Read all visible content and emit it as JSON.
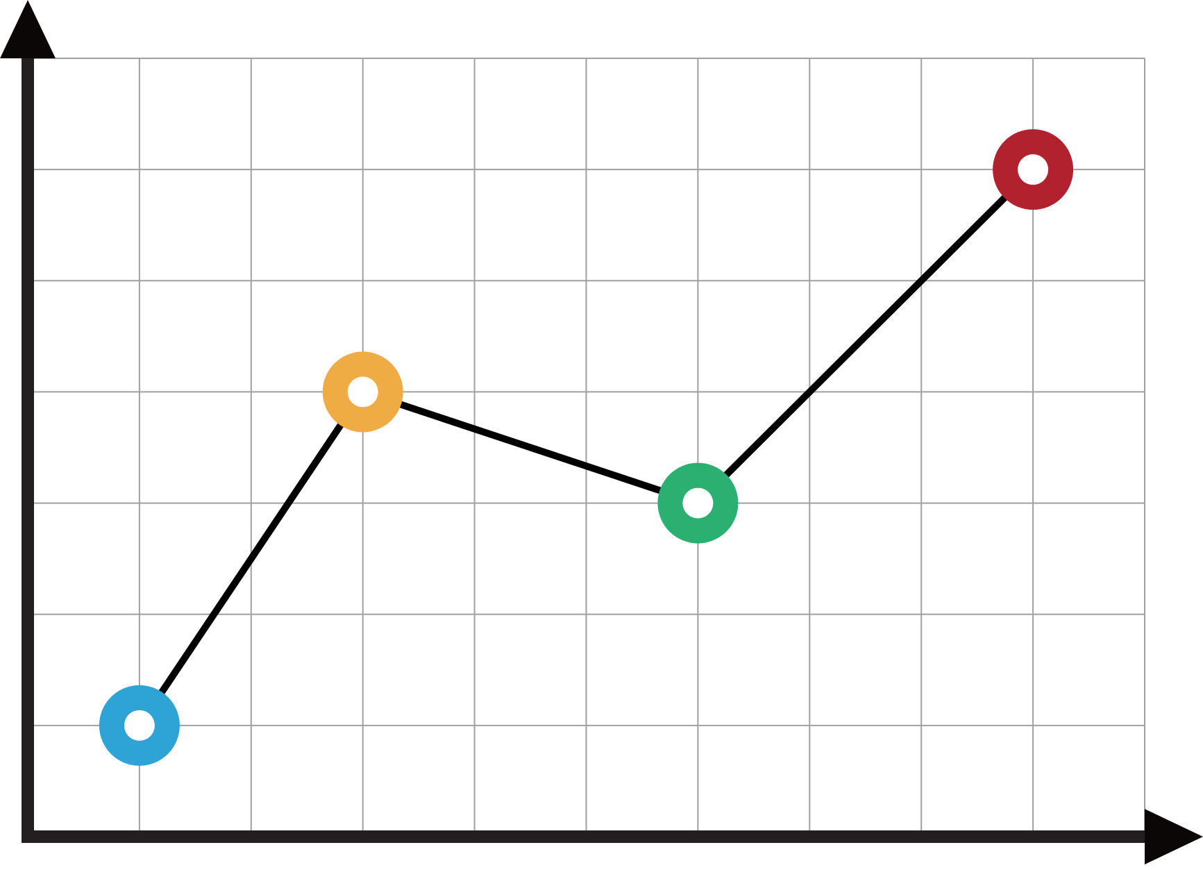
{
  "chart_data": {
    "type": "line",
    "title": "",
    "xlabel": "",
    "ylabel": "",
    "xlim": [
      0,
      10
    ],
    "ylim": [
      0,
      7
    ],
    "grid": true,
    "x_grid_step": 1,
    "y_grid_step": 1,
    "tick_labels_shown": false,
    "series": [
      {
        "line_color": "#000000",
        "points": [
          {
            "x": 1,
            "y": 1,
            "color": "#2ea3d5"
          },
          {
            "x": 3,
            "y": 4,
            "color": "#efab44"
          },
          {
            "x": 6,
            "y": 3,
            "color": "#2bb071"
          },
          {
            "x": 9,
            "y": 6,
            "color": "#b2212e"
          }
        ]
      }
    ]
  },
  "colors": {
    "axis": "#231f20",
    "arrowhead": "#0a0706",
    "grid": "#a0a0a0",
    "background": "#ffffff",
    "marker_center": "#ffffff"
  }
}
